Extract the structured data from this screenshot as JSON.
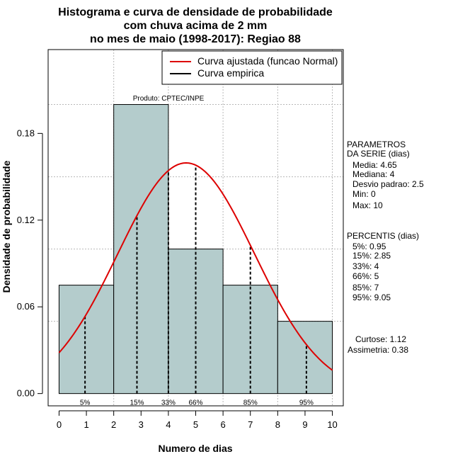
{
  "chart_data": {
    "type": "bar",
    "title_lines": [
      "Histograma e curva de densidade de probabilidade",
      "com chuva acima de 2 mm",
      "no mes de maio (1998-2017): Regiao 88"
    ],
    "xlabel": "Numero de dias",
    "ylabel": "Densidade de probabilidade",
    "xlim": [
      -0.4,
      10.4
    ],
    "ylim": [
      -0.0085,
      0.238
    ],
    "x_ticks": [
      0,
      1,
      2,
      3,
      4,
      5,
      6,
      7,
      8,
      9,
      10
    ],
    "y_ticks": [
      0.0,
      0.06,
      0.12,
      0.18
    ],
    "y_tick_labels": [
      "0.00",
      "0.06",
      "0.12",
      "0.18"
    ],
    "bins": [
      {
        "from": 0,
        "to": 2,
        "density": 0.075
      },
      {
        "from": 2,
        "to": 4,
        "density": 0.2
      },
      {
        "from": 4,
        "to": 6,
        "density": 0.1
      },
      {
        "from": 6,
        "to": 8,
        "density": 0.075
      },
      {
        "from": 8,
        "to": 10,
        "density": 0.05
      }
    ],
    "bar_fill": "#b4cccc",
    "normal_curve": {
      "name": "Curva ajustada (funcao Normal)",
      "mean": 4.65,
      "sd": 2.5,
      "from": 0,
      "to": 10,
      "color": "#dd0000"
    },
    "empirical_curve": {
      "name": "Curva empirica",
      "color": "#000000"
    },
    "percentile_lines": [
      {
        "label": "5%",
        "x": 0.95
      },
      {
        "label": "15%",
        "x": 2.85
      },
      {
        "label": "33%",
        "x": 4
      },
      {
        "label": "66%",
        "x": 5
      },
      {
        "label": "85%",
        "x": 7
      },
      {
        "label": "95%",
        "x": 9.05
      }
    ],
    "gridlines_y": [
      0.05,
      0.1,
      0.15,
      0.2
    ],
    "gridlines_x": [
      2,
      4,
      6,
      8,
      10
    ],
    "source_note": "Produto: CPTEC/INPE",
    "legend_position": "top-right"
  },
  "side_panel": {
    "parametros": [
      "PARAMETROS",
      "DA SERIE (dias)",
      "Media: 4.65",
      "Mediana: 4",
      "Desvio padrao: 2.5",
      "Min: 0",
      "Max: 10"
    ],
    "percentis": [
      "PERCENTIS (dias)",
      "5%: 0.95",
      "15%: 2.85",
      "33%: 4",
      "66%: 5",
      "85%: 7",
      "95%: 9.05"
    ],
    "stats": [
      "Curtose: 1.12",
      "Assimetria: 0.38"
    ]
  }
}
